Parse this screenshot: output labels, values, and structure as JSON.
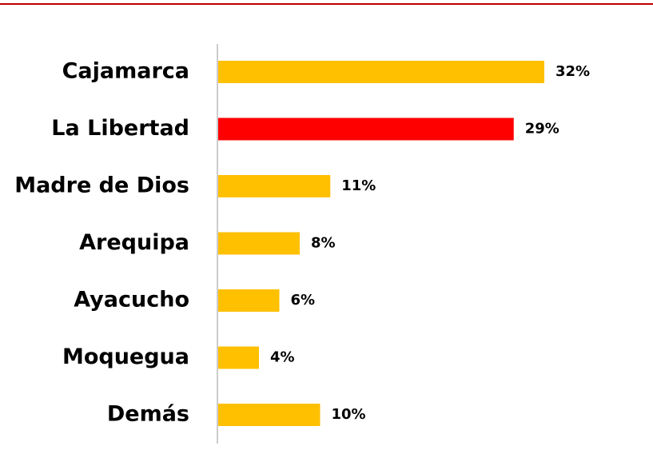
{
  "chart_data": {
    "type": "bar",
    "orientation": "horizontal",
    "categories": [
      "Cajamarca",
      "La Libertad",
      "Madre de Dios",
      "Arequipa",
      "Ayacucho",
      "Moquegua",
      "Demás"
    ],
    "values": [
      32,
      29,
      11,
      8,
      6,
      4,
      10
    ],
    "value_labels": [
      "32%",
      "29%",
      "11%",
      "8%",
      "6%",
      "4%",
      "10%"
    ],
    "colors": [
      "#FFC000",
      "#FF0000",
      "#FFC000",
      "#FFC000",
      "#FFC000",
      "#FFC000",
      "#FFC000"
    ]
  }
}
